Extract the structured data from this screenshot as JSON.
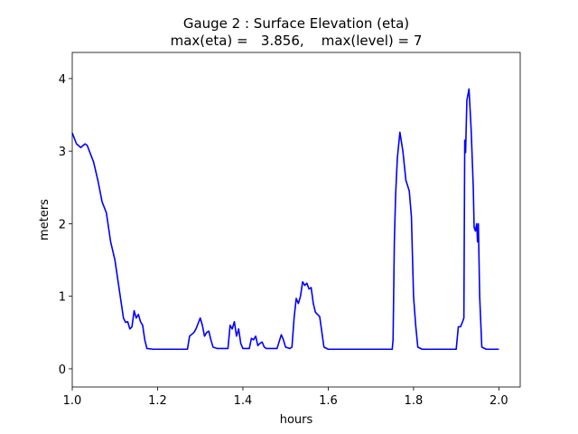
{
  "chart_data": {
    "type": "line",
    "title": [
      "Gauge 2 : Surface Elevation (eta)",
      "max(eta) =   3.856,    max(level) = 7"
    ],
    "x_label": "hours",
    "y_label": "meters",
    "xlim": [
      1.0,
      2.05
    ],
    "ylim": [
      -0.25,
      4.36
    ],
    "xticks": [
      {
        "value": 1.0,
        "label": "1.0"
      },
      1.2,
      1.4,
      1.6,
      1.8,
      {
        "value": 2.0,
        "label": "2.0"
      }
    ],
    "yticks": [
      0,
      1,
      2,
      3,
      4
    ],
    "x": [
      1.0,
      1.01,
      1.02,
      1.03,
      1.035,
      1.05,
      1.06,
      1.07,
      1.08,
      1.09,
      1.1,
      1.11,
      1.12,
      1.125,
      1.13,
      1.135,
      1.14,
      1.145,
      1.15,
      1.155,
      1.16,
      1.165,
      1.17,
      1.175,
      1.19,
      1.27,
      1.275,
      1.285,
      1.29,
      1.3,
      1.305,
      1.31,
      1.315,
      1.32,
      1.325,
      1.33,
      1.34,
      1.365,
      1.37,
      1.375,
      1.38,
      1.385,
      1.39,
      1.395,
      1.4,
      1.415,
      1.42,
      1.425,
      1.43,
      1.435,
      1.44,
      1.445,
      1.45,
      1.455,
      1.48,
      1.49,
      1.495,
      1.5,
      1.51,
      1.515,
      1.52,
      1.525,
      1.53,
      1.535,
      1.54,
      1.545,
      1.55,
      1.555,
      1.56,
      1.565,
      1.57,
      1.58,
      1.59,
      1.6,
      1.75,
      1.752,
      1.755,
      1.758,
      1.762,
      1.768,
      1.775,
      1.782,
      1.79,
      1.795,
      1.8,
      1.805,
      1.81,
      1.82,
      1.9,
      1.905,
      1.91,
      1.915,
      1.918,
      1.92,
      1.922,
      1.925,
      1.93,
      1.935,
      1.94,
      1.942,
      1.945,
      1.948,
      1.95,
      1.952,
      1.955,
      1.96,
      1.97,
      2.0
    ],
    "series": [
      {
        "name": "eta",
        "color": "#0000ff",
        "values": [
          3.25,
          3.1,
          3.05,
          3.1,
          3.08,
          2.85,
          2.6,
          2.3,
          2.15,
          1.75,
          1.5,
          1.1,
          0.7,
          0.64,
          0.65,
          0.55,
          0.58,
          0.8,
          0.7,
          0.75,
          0.65,
          0.6,
          0.4,
          0.28,
          0.27,
          0.27,
          0.45,
          0.5,
          0.55,
          0.7,
          0.6,
          0.45,
          0.5,
          0.52,
          0.4,
          0.3,
          0.28,
          0.28,
          0.6,
          0.55,
          0.65,
          0.45,
          0.55,
          0.35,
          0.28,
          0.28,
          0.42,
          0.4,
          0.45,
          0.32,
          0.35,
          0.37,
          0.3,
          0.28,
          0.28,
          0.47,
          0.4,
          0.3,
          0.28,
          0.3,
          0.7,
          0.97,
          0.9,
          1.0,
          1.2,
          1.15,
          1.18,
          1.1,
          1.12,
          0.9,
          0.78,
          0.72,
          0.3,
          0.27,
          0.27,
          0.4,
          1.75,
          2.4,
          2.9,
          3.26,
          3.0,
          2.6,
          2.45,
          2.1,
          1.0,
          0.6,
          0.3,
          0.27,
          0.27,
          0.58,
          0.58,
          0.65,
          0.7,
          3.15,
          2.98,
          3.7,
          3.856,
          3.3,
          2.5,
          1.95,
          1.9,
          2.0,
          1.75,
          2.0,
          1.0,
          0.3,
          0.27,
          0.27
        ]
      }
    ]
  }
}
